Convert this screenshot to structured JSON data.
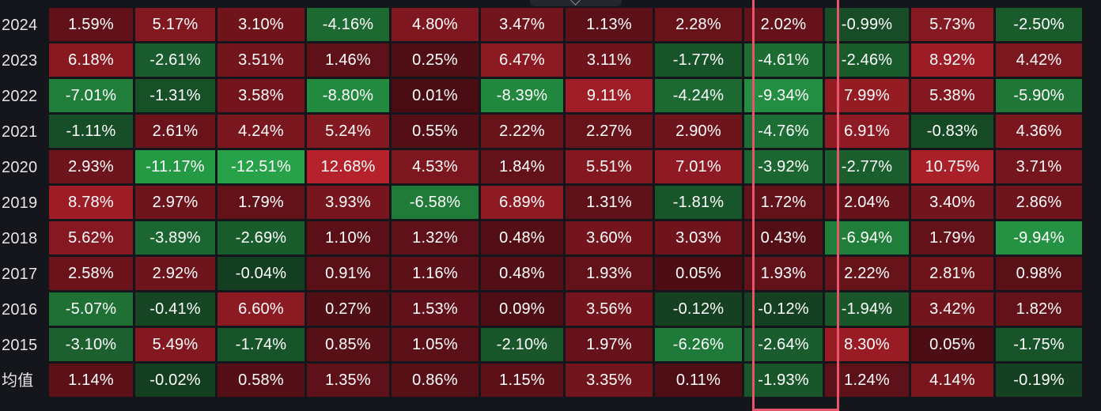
{
  "avg_label": "均值",
  "highlight_color": "#e8546a",
  "scale": {
    "positive_colors": [
      "#4a0d14",
      "#b6222b"
    ],
    "negative_colors": [
      "#143d20",
      "#27a349"
    ]
  },
  "rows": [
    {
      "year": "2024",
      "values": [
        "1.59%",
        "5.17%",
        "3.10%",
        "-4.16%",
        "4.80%",
        "3.47%",
        "1.13%",
        "2.28%",
        "2.02%",
        "-0.99%",
        "5.73%",
        "-2.50%"
      ]
    },
    {
      "year": "2023",
      "values": [
        "6.18%",
        "-2.61%",
        "3.51%",
        "1.46%",
        "0.25%",
        "6.47%",
        "3.11%",
        "-1.77%",
        "-4.61%",
        "-2.46%",
        "8.92%",
        "4.42%"
      ]
    },
    {
      "year": "2022",
      "values": [
        "-7.01%",
        "-1.31%",
        "3.58%",
        "-8.80%",
        "0.01%",
        "-8.39%",
        "9.11%",
        "-4.24%",
        "-9.34%",
        "7.99%",
        "5.38%",
        "-5.90%"
      ]
    },
    {
      "year": "2021",
      "values": [
        "-1.11%",
        "2.61%",
        "4.24%",
        "5.24%",
        "0.55%",
        "2.22%",
        "2.27%",
        "2.90%",
        "-4.76%",
        "6.91%",
        "-0.83%",
        "4.36%"
      ]
    },
    {
      "year": "2020",
      "values": [
        "2.93%",
        "-11.17%",
        "-12.51%",
        "12.68%",
        "4.53%",
        "1.84%",
        "5.51%",
        "7.01%",
        "-3.92%",
        "-2.77%",
        "10.75%",
        "3.71%"
      ]
    },
    {
      "year": "2019",
      "values": [
        "8.78%",
        "2.97%",
        "1.79%",
        "3.93%",
        "-6.58%",
        "6.89%",
        "1.31%",
        "-1.81%",
        "1.72%",
        "2.04%",
        "3.40%",
        "2.86%"
      ]
    },
    {
      "year": "2018",
      "values": [
        "5.62%",
        "-3.89%",
        "-2.69%",
        "1.10%",
        "1.32%",
        "0.48%",
        "3.60%",
        "3.03%",
        "0.43%",
        "-6.94%",
        "1.79%",
        "-9.94%"
      ]
    },
    {
      "year": "2017",
      "values": [
        "2.58%",
        "2.92%",
        "-0.04%",
        "0.91%",
        "1.16%",
        "0.48%",
        "1.93%",
        "0.05%",
        "1.93%",
        "2.22%",
        "2.81%",
        "0.98%"
      ]
    },
    {
      "year": "2016",
      "values": [
        "-5.07%",
        "-0.41%",
        "6.60%",
        "0.27%",
        "1.53%",
        "0.09%",
        "3.56%",
        "-0.12%",
        "-0.12%",
        "-1.94%",
        "3.42%",
        "1.82%"
      ]
    },
    {
      "year": "2015",
      "values": [
        "-3.10%",
        "5.49%",
        "-1.74%",
        "0.85%",
        "1.05%",
        "-2.10%",
        "1.97%",
        "-6.26%",
        "-2.64%",
        "8.30%",
        "0.05%",
        "-1.75%"
      ]
    }
  ],
  "averages": [
    "1.14%",
    "-0.02%",
    "0.58%",
    "1.35%",
    "0.86%",
    "1.15%",
    "3.35%",
    "0.11%",
    "-1.93%",
    "1.24%",
    "4.14%",
    "-0.19%"
  ]
}
